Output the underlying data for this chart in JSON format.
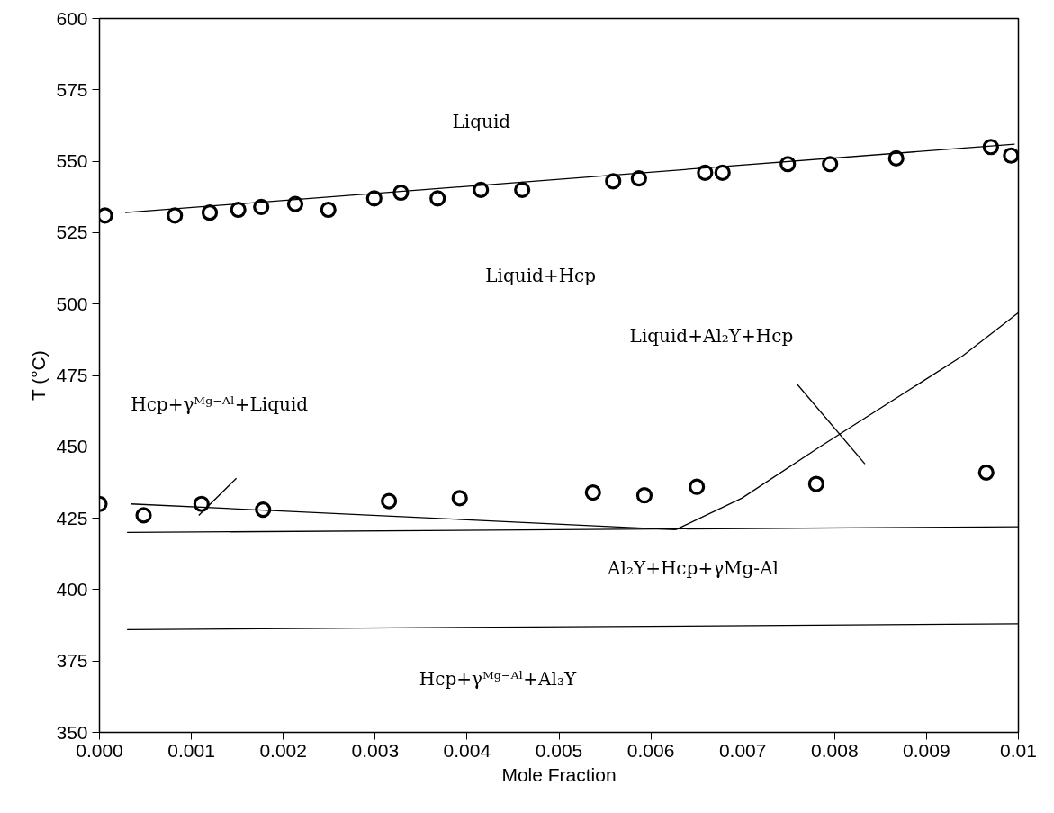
{
  "chart_data": {
    "type": "scatter",
    "xlabel": "Mole Fraction",
    "ylabel": "T (°C)",
    "xlim": [
      0,
      0.01
    ],
    "ylim": [
      350,
      600
    ],
    "xticks": [
      {
        "value": 0,
        "label": "0.000"
      },
      0.001,
      0.002,
      0.003,
      0.004,
      0.005,
      0.006,
      0.007,
      0.008,
      0.009,
      0.01
    ],
    "yticks": [
      350,
      375,
      400,
      425,
      450,
      475,
      500,
      525,
      550,
      575,
      600
    ],
    "grid": false,
    "marker": "circle",
    "annotations": [
      "Liquid",
      "Liquid+Hcp",
      "Liquid+Al₂Y+Hcp",
      "Hcp+γᴹᵍ⁻ᴬˡ+Liquid",
      "Al₂Y+Hcp+γMg-Al",
      "Hcp+γᴹᵍ⁻ᴬˡ+Al₃Y"
    ],
    "series": [
      {
        "color": "#000000",
        "x": [
          6e-05,
          0.00082,
          0.0012,
          0.00151,
          0.00176,
          0.00213,
          0.00249,
          0.00299,
          0.00328,
          0.00368,
          0.00415,
          0.0046,
          0.00559,
          0.00587,
          0.00659,
          0.00678,
          0.00749,
          0.00795,
          0.00867,
          0.0097,
          0.00992
        ],
        "values": [
          531,
          531,
          532,
          533,
          534,
          535,
          533,
          537,
          539,
          537,
          540,
          540,
          543,
          544,
          546,
          546,
          549,
          549,
          551,
          555,
          552
        ]
      },
      {
        "color": "#000000",
        "x": [
          0.0,
          0.00048,
          0.00111,
          0.00178,
          0.00315,
          0.00392,
          0.00537,
          0.00593,
          0.0065,
          0.0078,
          0.00965
        ],
        "values": [
          430,
          426,
          430,
          428,
          431,
          432,
          434,
          433,
          436,
          437,
          441
        ]
      },
      {
        "type": "line",
        "color": "#000000",
        "marker": "none",
        "line_style": "solid",
        "x": [
          0.00028,
          0.00996
        ],
        "values": [
          532,
          556
        ]
      },
      {
        "type": "line",
        "color": "#000000",
        "marker": "none",
        "line_style": "solid",
        "x": [
          0.00034,
          0.00627
        ],
        "values": [
          430,
          421
        ]
      },
      {
        "type": "line",
        "color": "#000000",
        "marker": "none",
        "line_style": "solid",
        "x": [
          0.00627,
          0.00699,
          0.00784,
          0.0094,
          0.01
        ],
        "values": [
          421,
          432,
          450,
          482,
          497
        ]
      },
      {
        "type": "line",
        "color": "#000000",
        "marker": "none",
        "line_style": "solid",
        "x": [
          0.0003,
          0.01
        ],
        "values": [
          420,
          422
        ]
      },
      {
        "type": "line",
        "color": "#000000",
        "marker": "none",
        "line_style": "solid",
        "x": [
          0.0003,
          0.01
        ],
        "values": [
          386,
          388
        ]
      },
      {
        "type": "line",
        "color": "#000000",
        "marker": "none",
        "line_style": "solid",
        "x": [
          0.00108,
          0.00149
        ],
        "values": [
          426,
          439
        ]
      },
      {
        "type": "line",
        "color": "#000000",
        "marker": "none",
        "line_style": "solid",
        "x": [
          0.00759,
          0.00833
        ],
        "values": [
          472,
          444
        ]
      }
    ]
  }
}
